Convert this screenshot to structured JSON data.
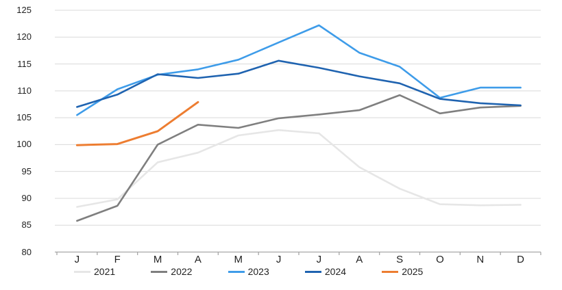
{
  "chart_data": {
    "type": "line",
    "title": "",
    "xlabel": "",
    "ylabel": "",
    "x_labels": [
      "J",
      "F",
      "M",
      "A",
      "M",
      "J",
      "J",
      "A",
      "S",
      "O",
      "N",
      "D"
    ],
    "y_axis": {
      "min": 80,
      "max": 125,
      "step": 5
    },
    "grid": true,
    "legend_position": "bottom",
    "colors": {
      "axis_line": "#A6A6A6",
      "gridline": "#D9D9D9",
      "text": "#1f1f1f"
    },
    "series": [
      {
        "name": "2021",
        "color": "#E6E6E6",
        "values": [
          88.4,
          89.8,
          96.7,
          98.5,
          101.7,
          102.7,
          102.1,
          95.8,
          91.8,
          88.9,
          88.7,
          88.8
        ]
      },
      {
        "name": "2022",
        "color": "#7F7F7F",
        "values": [
          85.8,
          88.6,
          100.0,
          103.7,
          103.1,
          104.9,
          105.6,
          106.4,
          109.2,
          105.8,
          106.9,
          107.2
        ]
      },
      {
        "name": "2023",
        "color": "#3E9CE9",
        "values": [
          105.5,
          110.3,
          113.0,
          114.0,
          115.8,
          119.0,
          122.2,
          117.1,
          114.5,
          108.7,
          110.6,
          110.6
        ]
      },
      {
        "name": "2024",
        "color": "#1F63B0",
        "values": [
          107.0,
          109.3,
          113.1,
          112.4,
          113.2,
          115.6,
          114.3,
          112.7,
          111.4,
          108.5,
          107.7,
          107.3
        ]
      },
      {
        "name": "2025",
        "color": "#ED7D31",
        "values": [
          99.9,
          100.1,
          102.5,
          107.9
        ]
      }
    ]
  }
}
